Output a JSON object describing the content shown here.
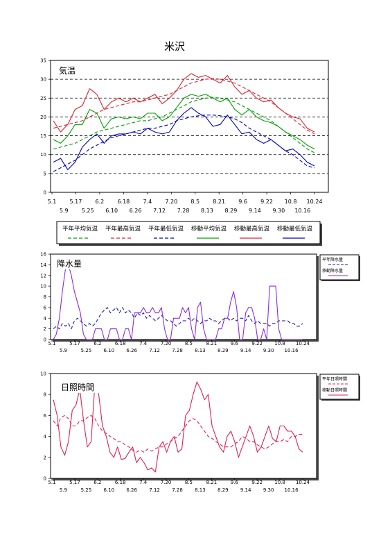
{
  "title": "米沢",
  "chart_data": [
    {
      "type": "line",
      "title": "気温",
      "ylim": [
        0,
        35
      ],
      "yticks": [
        0,
        5,
        10,
        15,
        20,
        25,
        30,
        35
      ],
      "grid": "horizontal dashed",
      "x_labels_row1": [
        "5.1",
        "5.17",
        "6.2",
        "6.18",
        "7.4",
        "7.20",
        "8.5",
        "8.21",
        "9.6",
        "9.22",
        "10.8",
        "10.24"
      ],
      "x_labels_row2": [
        "5.9",
        "5.25",
        "6.10",
        "6.26",
        "7.12",
        "7.28",
        "8.13",
        "8.29",
        "9.14",
        "9.30",
        "10.16"
      ],
      "legend_position": "bottom",
      "legend": [
        {
          "name": "平年平均気温",
          "color": "#00a000",
          "dash": true
        },
        {
          "name": "平年最高気温",
          "color": "#e02030",
          "dash": true
        },
        {
          "name": "平年最低気温",
          "color": "#0000c0",
          "dash": true
        },
        {
          "name": "移動平均気温",
          "color": "#00a000",
          "dash": false
        },
        {
          "name": "移動最高気温",
          "color": "#e02030",
          "dash": false
        },
        {
          "name": "移動最低気温",
          "color": "#0000c0",
          "dash": false
        }
      ],
      "series": [
        {
          "name": "平年最高気温",
          "color": "#e02030",
          "dash": true,
          "values": [
            17,
            17.5,
            18,
            18.5,
            19,
            20,
            21,
            22,
            22.5,
            23,
            23.5,
            24,
            24,
            24.5,
            25,
            25.5,
            26,
            27,
            28,
            29,
            29.5,
            30,
            30.2,
            30,
            29.5,
            29,
            28,
            27,
            26,
            25,
            24,
            22.5,
            21,
            19.5,
            18,
            16.5,
            15.5
          ]
        },
        {
          "name": "平年平均気温",
          "color": "#00a000",
          "dash": true,
          "values": [
            11.5,
            12,
            12.5,
            13,
            14,
            15,
            16,
            16.5,
            17,
            17.5,
            18,
            18.5,
            19,
            19,
            19.5,
            20,
            21,
            22,
            23,
            24,
            24.5,
            25,
            25.2,
            25,
            24.5,
            24,
            23,
            22,
            21,
            20,
            19,
            17.5,
            16,
            14.5,
            13,
            11.5,
            10.5
          ]
        },
        {
          "name": "平年最低気温",
          "color": "#0000c0",
          "dash": true,
          "values": [
            5.5,
            6.5,
            7.5,
            8.5,
            10,
            11.5,
            12.5,
            13.5,
            14.5,
            15,
            15.5,
            16,
            16.5,
            17,
            17,
            17.5,
            18,
            19,
            19.5,
            20,
            20.3,
            20.5,
            20.5,
            20.3,
            20,
            19.5,
            18.5,
            17,
            16,
            15,
            14,
            12.5,
            11,
            10,
            8.5,
            7,
            6.5
          ]
        },
        {
          "name": "移動最高気温",
          "color": "#e02030",
          "dash": false,
          "values": [
            19,
            16,
            18,
            22,
            23,
            27.5,
            26,
            22,
            24,
            25,
            24,
            25,
            24,
            25,
            26,
            23.5,
            25,
            27,
            30,
            31.5,
            30.5,
            31,
            30,
            29,
            31,
            28,
            26,
            27,
            25,
            24,
            24.5,
            22.5,
            21,
            20,
            19.5,
            17,
            16
          ]
        },
        {
          "name": "移動平均気温",
          "color": "#00a000",
          "dash": false,
          "values": [
            14,
            13,
            15,
            18,
            18,
            22,
            21,
            17,
            19.5,
            20,
            19.5,
            20,
            19.5,
            21,
            21,
            19,
            20,
            22.5,
            25,
            26,
            25.5,
            26,
            25,
            24,
            25,
            22,
            20.5,
            22,
            20,
            19,
            18.5,
            17.5,
            16,
            15,
            14,
            12.5,
            11.5
          ]
        },
        {
          "name": "移動最低気温",
          "color": "#0000c0",
          "dash": false,
          "values": [
            8,
            9,
            6,
            8,
            12,
            14,
            15.5,
            13,
            15,
            15.5,
            15.5,
            16,
            15.5,
            17,
            16,
            15.5,
            16,
            19,
            21,
            22.5,
            21,
            20,
            17.5,
            18,
            20.5,
            18,
            15.5,
            16,
            14,
            13,
            14,
            12.5,
            11,
            11.5,
            10,
            8,
            7
          ]
        }
      ]
    },
    {
      "type": "line",
      "title": "降水量",
      "ylim": [
        0,
        16
      ],
      "yticks": [
        0,
        2,
        4,
        6,
        8,
        10,
        12,
        14,
        16
      ],
      "x_labels_row1": [
        "5.1",
        "5.17",
        "6.2",
        "6.18",
        "7.4",
        "7.20",
        "8.5",
        "8.21",
        "9.6",
        "9.22",
        "10.8",
        "10.24"
      ],
      "x_labels_row2": [
        "5.9",
        "5.25",
        "6.10",
        "6.26",
        "7.12",
        "7.28",
        "8.13",
        "8.29",
        "9.14",
        "9.30",
        "10.16"
      ],
      "legend_position": "right",
      "legend": [
        {
          "name": "平年降水量",
          "color": "#1a1ab0",
          "dash": true
        },
        {
          "name": "移動降水量",
          "color": "#8a2be2",
          "dash": false
        }
      ],
      "series": [
        {
          "name": "平年降水量",
          "color": "#1a1ab0",
          "dash": true,
          "values": [
            2,
            2.5,
            2,
            3,
            2.5,
            3,
            2,
            3.5,
            4,
            3.5,
            3,
            2.5,
            3,
            2.5,
            3,
            4,
            5,
            5.5,
            6,
            5,
            5.5,
            6,
            5,
            6,
            5,
            5.5,
            5,
            4,
            5,
            4.5,
            5,
            4,
            4.5,
            4,
            3.5,
            4,
            4.5,
            4,
            3.5,
            3.5,
            3,
            2.5,
            3,
            3.5,
            3.5,
            4,
            3.5,
            4,
            3.5,
            3,
            3.5,
            3.5,
            4,
            3.5,
            3.5,
            3,
            3.5,
            4,
            4,
            3.5,
            4,
            3.5,
            4,
            4,
            3.5,
            4.5,
            3.5,
            3,
            3.5,
            3,
            3,
            3,
            2.5,
            3,
            3,
            3.5,
            3.5,
            3.5,
            3.5,
            3,
            3,
            2.5,
            2.5,
            3
          ]
        },
        {
          "name": "移動降水量",
          "color": "#8a2be2",
          "dash": false,
          "values": [
            0,
            1,
            4,
            9,
            13,
            14,
            12,
            9,
            7,
            5,
            1,
            0,
            0,
            0,
            2,
            2,
            2,
            0,
            0,
            2,
            2,
            2,
            0,
            0,
            2,
            2,
            0,
            5,
            5,
            5,
            6,
            5,
            5,
            6,
            5,
            5,
            6,
            2,
            0,
            0,
            4,
            4,
            4,
            6,
            5,
            6,
            2,
            0,
            6,
            7,
            2,
            0,
            0,
            0,
            0,
            2,
            2,
            4,
            4,
            7,
            9,
            6,
            0,
            0,
            5,
            6,
            6,
            4,
            0,
            0,
            2,
            0,
            10,
            10,
            10,
            2,
            0,
            0,
            0,
            0,
            0,
            0,
            0,
            0
          ]
        }
      ]
    },
    {
      "type": "line",
      "title": "日照時間",
      "ylim": [
        0,
        10
      ],
      "yticks": [
        0,
        2,
        4,
        6,
        8,
        10
      ],
      "x_labels_row1": [
        "5.1",
        "5.17",
        "6.2",
        "6.18",
        "7.4",
        "7.20",
        "8.5",
        "8.21",
        "9.6",
        "9.22",
        "10.8",
        "10.24"
      ],
      "x_labels_row2": [
        "5.9",
        "5.25",
        "6.10",
        "6.26",
        "7.12",
        "7.28",
        "8.13",
        "8.29",
        "9.14",
        "9.30",
        "10.16"
      ],
      "legend_position": "right",
      "legend": [
        {
          "name": "平年日照時間",
          "color": "#e02050",
          "dash": true
        },
        {
          "name": "移動日照時間",
          "color": "#e02050",
          "dash": false
        }
      ],
      "series": [
        {
          "name": "平年日照時間",
          "color": "#e02050",
          "dash": true,
          "values": [
            5.5,
            5,
            5.8,
            6,
            5.7,
            5,
            5,
            5.5,
            5.5,
            5.8,
            6,
            5.7,
            5,
            4.5,
            4.3,
            4,
            3.8,
            3.5,
            3.5,
            3.2,
            3,
            2.7,
            2.5,
            2.7,
            2.5,
            2.8,
            2.6,
            2.8,
            3,
            3,
            3.3,
            3.5,
            3.8,
            4,
            4.5,
            5,
            5.5,
            5.7,
            5.5,
            5,
            4.5,
            4,
            3.8,
            3.5,
            3.3,
            3,
            3,
            3,
            3.3,
            3.5,
            4,
            3.8,
            3.5,
            3.5,
            3.2,
            3,
            2.8,
            3,
            3.3,
            3.5,
            3.5,
            3.7,
            3.5,
            4,
            4,
            4.2,
            4.2
          ]
        },
        {
          "name": "移動日照時間",
          "color": "#e02050",
          "dash": false,
          "values": [
            7.5,
            6,
            3,
            2.2,
            3.5,
            6.5,
            7,
            8.5,
            5.5,
            3,
            3.5,
            9,
            8,
            5,
            4,
            2.5,
            2,
            3,
            1.8,
            1.9,
            2.5,
            3,
            1.5,
            2,
            1.5,
            0.8,
            1,
            0.6,
            3,
            3.5,
            2.5,
            3.5,
            4,
            2.5,
            2.8,
            6,
            6.5,
            8,
            9.2,
            8.5,
            7.5,
            8,
            5,
            4,
            3,
            2.5,
            4,
            4.5,
            3.5,
            2,
            3,
            4,
            5,
            4,
            2.5,
            3,
            4,
            5,
            3.8,
            3.5,
            5,
            5,
            4.5,
            4.5,
            4,
            2.8,
            2.5
          ]
        }
      ]
    }
  ]
}
